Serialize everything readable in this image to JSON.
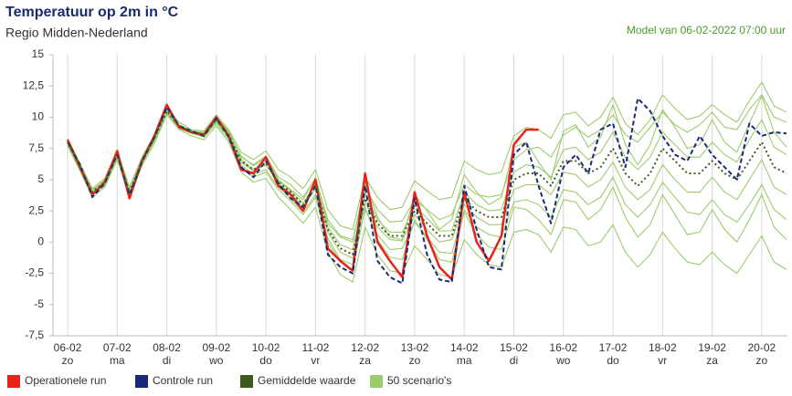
{
  "chart_data": {
    "type": "line",
    "title": "Temperatuur op 2m in °C",
    "subtitle": "Regio Midden-Nederland",
    "annotation": "Model van 06-02-2022 07:00 uur",
    "categories": [
      "06-02",
      null,
      null,
      null,
      "07-02",
      null,
      null,
      null,
      "08-02",
      null,
      null,
      null,
      "09-02",
      null,
      null,
      null,
      "10-02",
      null,
      null,
      null,
      "11-02",
      null,
      null,
      null,
      "12-02",
      null,
      null,
      null,
      "13-02",
      null,
      null,
      null,
      "14-02",
      null,
      null,
      null,
      "15-02",
      null,
      null,
      null,
      "16-02",
      null,
      null,
      null,
      "17-02",
      null,
      null,
      null,
      "18-02",
      null,
      null,
      null,
      "19-02",
      null,
      null,
      null,
      "20-02",
      null,
      null
    ],
    "weekdays": [
      "zo",
      null,
      null,
      null,
      "ma",
      null,
      null,
      null,
      "di",
      null,
      null,
      null,
      "wo",
      null,
      null,
      null,
      "do",
      null,
      null,
      null,
      "vr",
      null,
      null,
      null,
      "za",
      null,
      null,
      null,
      "zo",
      null,
      null,
      null,
      "ma",
      null,
      null,
      null,
      "di",
      null,
      null,
      null,
      "wo",
      null,
      null,
      null,
      "do",
      null,
      null,
      null,
      "vr",
      null,
      null,
      null,
      "za",
      null,
      null,
      null,
      "zo",
      null,
      null
    ],
    "ylim": [
      -7.5,
      15
    ],
    "yticks": [
      {
        "value": -7.5,
        "label": "-7,5"
      },
      -5,
      {
        "value": -2.5,
        "label": "-2,5"
      },
      0,
      {
        "value": 2.5,
        "label": "2,5"
      },
      5,
      {
        "value": 7.5,
        "label": "7,5"
      },
      10,
      {
        "value": 12.5,
        "label": "12,5"
      },
      15
    ],
    "grid": "x",
    "legend": "bottom-left",
    "series": [
      {
        "name": "Operationele run",
        "color": "#e8231a",
        "style": "solid",
        "values": [
          8.2,
          6.0,
          3.8,
          4.8,
          7.3,
          3.5,
          6.5,
          8.5,
          11.0,
          9.2,
          8.8,
          8.6,
          10.0,
          8.5,
          5.8,
          5.5,
          6.8,
          4.5,
          3.8,
          2.5,
          5.0,
          -0.5,
          -1.5,
          -2.3,
          5.5,
          0.0,
          -1.5,
          -2.8,
          4.0,
          0.5,
          -2.0,
          -3.0,
          4.0,
          0.0,
          -1.5,
          0.5,
          7.8,
          9.0,
          9.0,
          null,
          null,
          null,
          null,
          null,
          null,
          null,
          null,
          null,
          null,
          null,
          null,
          null,
          null,
          null,
          null,
          null,
          null,
          null,
          null
        ]
      },
      {
        "name": "Controle run",
        "color": "#1a2a7a",
        "style": "dashed",
        "values": [
          8.0,
          6.2,
          3.6,
          4.7,
          7.0,
          3.8,
          6.4,
          8.4,
          10.8,
          9.3,
          8.9,
          8.5,
          9.9,
          8.4,
          6.0,
          5.2,
          6.5,
          4.7,
          3.5,
          2.8,
          4.5,
          -1.0,
          -2.0,
          -2.5,
          4.5,
          -1.5,
          -2.8,
          -3.3,
          3.5,
          -1.0,
          -3.0,
          -3.2,
          4.5,
          1.0,
          -2.0,
          -2.2,
          7.0,
          8.0,
          4.5,
          1.5,
          6.0,
          7.0,
          5.5,
          9.0,
          9.5,
          6.0,
          11.5,
          10.5,
          8.5,
          7.0,
          6.5,
          8.5,
          7.0,
          6.0,
          5.0,
          9.5,
          8.5,
          8.8,
          8.7
        ]
      },
      {
        "name": "Gemiddelde waarde",
        "color": "#3f5a1f",
        "style": "dotted",
        "values": [
          8.0,
          6.0,
          4.0,
          4.8,
          7.0,
          4.0,
          6.5,
          8.3,
          10.5,
          9.3,
          8.8,
          8.6,
          9.8,
          8.6,
          6.5,
          5.8,
          6.3,
          4.8,
          4.0,
          3.0,
          4.5,
          1.0,
          -0.5,
          -1.0,
          3.5,
          1.5,
          0.5,
          0.5,
          2.5,
          1.5,
          0.5,
          0.5,
          3.5,
          2.5,
          2.0,
          2.0,
          5.0,
          5.5,
          5.5,
          4.5,
          6.5,
          6.5,
          5.5,
          6.0,
          7.5,
          5.5,
          4.5,
          5.5,
          7.5,
          6.5,
          5.5,
          5.5,
          6.5,
          5.5,
          5.0,
          6.5,
          8.0,
          6.0,
          5.5
        ]
      },
      {
        "name": "50 scenario's",
        "color": "#9ccb6c",
        "style": "ensemble",
        "members": [
          [
            8.3,
            6.3,
            4.3,
            5.1,
            7.3,
            4.4,
            6.8,
            8.6,
            10.6,
            9.6,
            9.0,
            8.9,
            10.2,
            9.0,
            7.2,
            6.6,
            7.3,
            5.8,
            5.2,
            4.3,
            5.8,
            2.6,
            1.3,
            1.0,
            5.2,
            3.6,
            2.6,
            2.8,
            4.9,
            4.1,
            3.4,
            3.6,
            6.5,
            5.8,
            5.4,
            5.6,
            8.5,
            9.2,
            9.0,
            8.3,
            10.2,
            10.4,
            9.3,
            10.0,
            11.6,
            9.5,
            8.6,
            9.8,
            11.8,
            10.7,
            9.8,
            10.1,
            11.0,
            10.2,
            9.6,
            11.3,
            12.8,
            10.9,
            10.4
          ],
          [
            7.7,
            5.7,
            3.6,
            4.4,
            6.6,
            3.6,
            6.1,
            7.9,
            10.2,
            9.0,
            8.5,
            8.2,
            9.3,
            8.0,
            5.6,
            4.8,
            5.1,
            3.6,
            2.6,
            1.5,
            2.8,
            -0.8,
            -2.6,
            -3.2,
            1.2,
            -1.0,
            -2.3,
            -2.5,
            -0.3,
            -1.4,
            -2.6,
            -2.8,
            0.2,
            -1.0,
            -1.8,
            -2.0,
            0.8,
            1.0,
            0.6,
            -0.8,
            1.2,
            1.0,
            -0.3,
            0.0,
            1.4,
            -0.8,
            -2.0,
            -1.0,
            0.8,
            -0.5,
            -1.6,
            -1.8,
            -0.8,
            -1.8,
            -2.5,
            -1.0,
            0.5,
            -1.6,
            -2.2
          ],
          [
            8.1,
            6.1,
            4.2,
            4.9,
            7.1,
            4.1,
            6.6,
            8.4,
            10.7,
            9.4,
            8.9,
            8.7,
            9.9,
            8.8,
            6.9,
            6.1,
            6.8,
            5.0,
            4.2,
            3.4,
            5.2,
            1.5,
            0.4,
            0.0,
            4.8,
            2.0,
            0.4,
            0.2,
            3.8,
            2.5,
            1.0,
            1.8,
            5.4,
            4.0,
            3.0,
            3.6,
            7.6,
            8.0,
            6.4,
            5.0,
            8.9,
            9.4,
            7.6,
            8.4,
            11.0,
            7.8,
            6.2,
            7.8,
            10.6,
            9.2,
            7.5,
            7.8,
            9.8,
            8.0,
            7.2,
            9.5,
            11.7,
            8.8,
            7.6
          ],
          [
            7.9,
            5.9,
            3.8,
            4.6,
            6.8,
            3.9,
            6.4,
            8.2,
            10.4,
            9.2,
            8.7,
            8.5,
            9.6,
            8.4,
            6.2,
            5.4,
            5.8,
            4.4,
            3.5,
            2.4,
            3.8,
            0.3,
            -1.4,
            -1.8,
            2.6,
            0.6,
            -0.6,
            -0.5,
            1.6,
            0.4,
            -0.8,
            -0.9,
            2.6,
            1.2,
            0.6,
            0.4,
            3.2,
            3.4,
            3.0,
            2.0,
            4.2,
            4.0,
            3.0,
            3.6,
            5.2,
            3.0,
            2.0,
            3.0,
            4.8,
            3.6,
            2.4,
            2.2,
            3.4,
            2.2,
            1.6,
            3.0,
            4.6,
            2.6,
            1.8
          ],
          [
            8.2,
            6.2,
            4.1,
            5.0,
            7.2,
            4.3,
            6.7,
            8.5,
            10.5,
            9.4,
            8.9,
            8.8,
            10.0,
            8.9,
            6.8,
            6.2,
            6.9,
            5.2,
            4.6,
            3.6,
            5.1,
            1.8,
            0.5,
            0.2,
            4.4,
            2.6,
            1.6,
            1.7,
            3.4,
            2.6,
            1.8,
            2.2,
            4.6,
            3.8,
            3.6,
            3.8,
            6.6,
            7.4,
            7.6,
            6.8,
            8.6,
            9.2,
            8.4,
            9.0,
            10.2,
            8.6,
            8.0,
            9.2,
            10.4,
            9.4,
            8.8,
            9.4,
            10.4,
            9.2,
            9.0,
            10.6,
            11.8,
            10.0,
            9.6
          ],
          [
            7.8,
            5.8,
            3.9,
            4.5,
            6.9,
            3.8,
            6.3,
            8.1,
            10.3,
            9.1,
            8.7,
            8.4,
            9.5,
            8.2,
            6.0,
            5.2,
            5.6,
            4.2,
            3.3,
            2.2,
            3.6,
            0.0,
            -1.6,
            -2.2,
            2.8,
            0.2,
            -1.2,
            -1.4,
            1.8,
            0.2,
            -1.4,
            -1.6,
            2.4,
            0.6,
            -0.4,
            -0.6,
            2.8,
            2.6,
            1.8,
            0.6,
            3.4,
            3.2,
            1.8,
            2.6,
            4.4,
            2.0,
            0.4,
            1.4,
            3.8,
            2.2,
            0.6,
            0.8,
            2.6,
            1.0,
            0.0,
            1.8,
            3.8,
            1.2,
            0.2
          ],
          [
            8.0,
            6.0,
            4.0,
            4.8,
            7.0,
            4.0,
            6.5,
            8.3,
            10.5,
            9.3,
            8.8,
            8.6,
            9.8,
            8.6,
            6.6,
            5.8,
            6.4,
            4.9,
            4.1,
            3.1,
            4.7,
            1.2,
            -0.2,
            -0.6,
            3.9,
            1.8,
            0.8,
            0.8,
            2.9,
            1.9,
            0.9,
            0.9,
            4.0,
            3.0,
            2.5,
            2.6,
            5.6,
            6.2,
            6.0,
            5.2,
            7.4,
            7.6,
            6.6,
            7.2,
            8.8,
            6.8,
            5.8,
            6.8,
            8.8,
            7.8,
            6.8,
            6.8,
            8.0,
            7.0,
            6.4,
            8.2,
            9.8,
            7.6,
            7.0
          ],
          [
            8.1,
            6.0,
            3.9,
            4.7,
            7.1,
            3.9,
            6.5,
            8.3,
            10.6,
            9.3,
            8.8,
            8.6,
            9.7,
            8.5,
            6.4,
            5.7,
            6.2,
            4.7,
            3.9,
            2.8,
            4.3,
            0.8,
            -0.8,
            -1.3,
            3.2,
            1.2,
            0.2,
            0.1,
            2.2,
            1.0,
            0.0,
            0.2,
            3.0,
            2.0,
            1.4,
            1.4,
            4.2,
            4.6,
            4.6,
            3.8,
            5.6,
            5.4,
            4.4,
            5.0,
            6.4,
            4.4,
            3.4,
            4.2,
            6.2,
            5.0,
            4.0,
            4.0,
            5.2,
            4.0,
            3.4,
            5.0,
            6.6,
            4.4,
            3.8
          ]
        ]
      }
    ]
  }
}
